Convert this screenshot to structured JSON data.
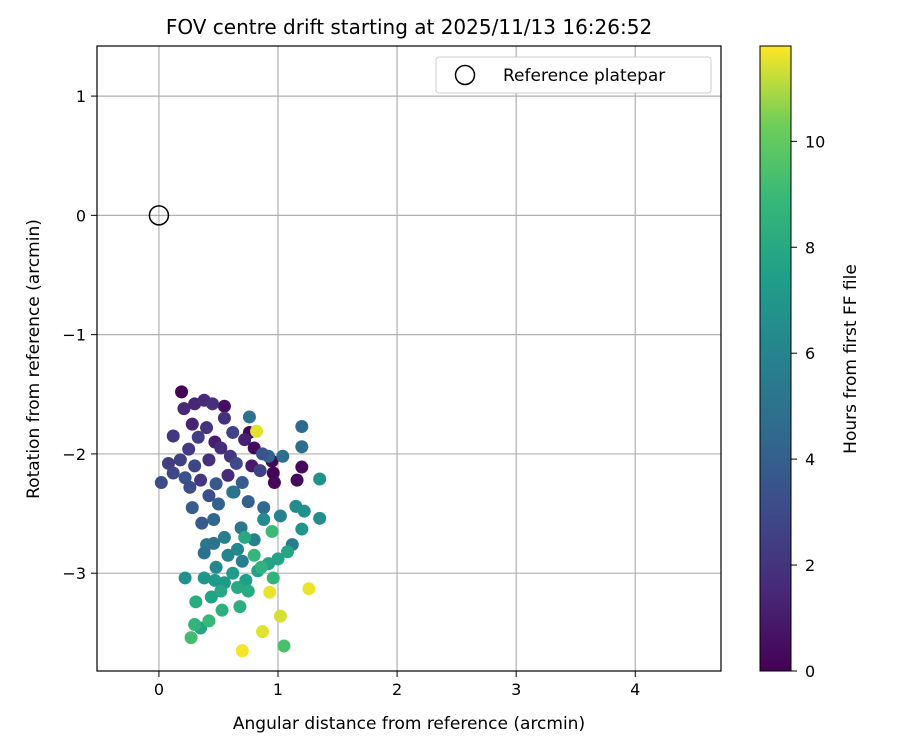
{
  "chart_data": {
    "type": "scatter",
    "title": "FOV centre drift starting at 2025/11/13 16:26:52",
    "xlabel": "Angular distance from reference (arcmin)",
    "ylabel": "Rotation from reference (arcmin)",
    "xlim": [
      -0.52,
      4.72
    ],
    "ylim": [
      -3.82,
      1.42
    ],
    "xticks": [
      0,
      1,
      2,
      3,
      4
    ],
    "yticks": [
      1,
      0,
      -1,
      -2,
      -3
    ],
    "xtick_labels": [
      "0",
      "1",
      "2",
      "3",
      "4"
    ],
    "ytick_labels": [
      "1",
      "0",
      "−1",
      "−2",
      "−3"
    ],
    "grid": true,
    "legend": {
      "position": "top-right",
      "entries": [
        {
          "label": "Reference platepar",
          "marker": "open-circle"
        }
      ]
    },
    "reference_point": {
      "x": 0,
      "y": 0
    },
    "colorbar": {
      "label": "Hours from first FF file",
      "colormap": "viridis",
      "range": [
        0,
        11.8
      ],
      "ticks": [
        0,
        2,
        4,
        6,
        8,
        10
      ],
      "tick_labels": [
        "0",
        "2",
        "4",
        "6",
        "8",
        "10"
      ]
    },
    "points": [
      {
        "x": 0.19,
        "y": -1.48,
        "h": 0.1
      },
      {
        "x": 0.55,
        "y": -1.6,
        "h": 0.5
      },
      {
        "x": 0.76,
        "y": -1.82,
        "h": 0.3
      },
      {
        "x": 0.95,
        "y": -2.06,
        "h": 0.2
      },
      {
        "x": 1.2,
        "y": -2.11,
        "h": 0.4
      },
      {
        "x": 1.16,
        "y": -2.22,
        "h": 0.3
      },
      {
        "x": 0.96,
        "y": -2.16,
        "h": 0.2
      },
      {
        "x": 0.97,
        "y": -2.24,
        "h": 0.3
      },
      {
        "x": 0.8,
        "y": -1.95,
        "h": 0.4
      },
      {
        "x": 0.3,
        "y": -1.58,
        "h": 1.4
      },
      {
        "x": 0.38,
        "y": -1.55,
        "h": 1.6
      },
      {
        "x": 0.45,
        "y": -1.58,
        "h": 1.8
      },
      {
        "x": 0.21,
        "y": -1.62,
        "h": 1.5
      },
      {
        "x": 0.55,
        "y": -1.7,
        "h": 1.9
      },
      {
        "x": 0.28,
        "y": -1.75,
        "h": 1.3
      },
      {
        "x": 0.4,
        "y": -1.78,
        "h": 2.0
      },
      {
        "x": 0.12,
        "y": -1.85,
        "h": 2.2
      },
      {
        "x": 0.33,
        "y": -1.86,
        "h": 2.5
      },
      {
        "x": 0.47,
        "y": -1.9,
        "h": 1.1
      },
      {
        "x": 0.62,
        "y": -1.82,
        "h": 2.7
      },
      {
        "x": 0.72,
        "y": -1.88,
        "h": 1.2
      },
      {
        "x": 0.25,
        "y": -1.96,
        "h": 2.3
      },
      {
        "x": 0.52,
        "y": -1.95,
        "h": 1.7
      },
      {
        "x": 0.6,
        "y": -2.02,
        "h": 2.1
      },
      {
        "x": 0.08,
        "y": -2.08,
        "h": 2.4
      },
      {
        "x": 0.18,
        "y": -2.05,
        "h": 2.6
      },
      {
        "x": 0.3,
        "y": -2.1,
        "h": 2.8
      },
      {
        "x": 0.42,
        "y": -2.05,
        "h": 1.8
      },
      {
        "x": 0.65,
        "y": -2.08,
        "h": 3.0
      },
      {
        "x": 0.78,
        "y": -2.1,
        "h": 0.9
      },
      {
        "x": 0.02,
        "y": -2.24,
        "h": 3.2
      },
      {
        "x": 0.12,
        "y": -2.16,
        "h": 2.9
      },
      {
        "x": 0.22,
        "y": -2.2,
        "h": 3.4
      },
      {
        "x": 0.35,
        "y": -2.22,
        "h": 2.2
      },
      {
        "x": 0.48,
        "y": -2.25,
        "h": 3.6
      },
      {
        "x": 0.58,
        "y": -2.18,
        "h": 1.6
      },
      {
        "x": 0.7,
        "y": -2.24,
        "h": 3.8
      },
      {
        "x": 0.85,
        "y": -2.14,
        "h": 2.6
      },
      {
        "x": 0.26,
        "y": -2.28,
        "h": 3.1
      },
      {
        "x": 0.28,
        "y": -2.45,
        "h": 3.9
      },
      {
        "x": 0.42,
        "y": -2.35,
        "h": 3.3
      },
      {
        "x": 0.5,
        "y": -2.42,
        "h": 4.1
      },
      {
        "x": 0.63,
        "y": -2.32,
        "h": 4.3
      },
      {
        "x": 0.75,
        "y": -2.4,
        "h": 4.0
      },
      {
        "x": 0.36,
        "y": -2.58,
        "h": 3.7
      },
      {
        "x": 0.46,
        "y": -2.55,
        "h": 4.4
      },
      {
        "x": 0.88,
        "y": -2.45,
        "h": 4.6
      },
      {
        "x": 0.92,
        "y": -2.02,
        "h": 4.2
      },
      {
        "x": 1.04,
        "y": -2.02,
        "h": 4.8
      },
      {
        "x": 0.87,
        "y": -2.0,
        "h": 3.5
      },
      {
        "x": 1.2,
        "y": -1.77,
        "h": 4.5
      },
      {
        "x": 1.2,
        "y": -1.94,
        "h": 4.7
      },
      {
        "x": 0.76,
        "y": -1.69,
        "h": 5.0
      },
      {
        "x": 0.62,
        "y": -2.32,
        "h": 5.2
      },
      {
        "x": 0.4,
        "y": -2.76,
        "h": 5.4
      },
      {
        "x": 0.46,
        "y": -2.75,
        "h": 5.1
      },
      {
        "x": 0.38,
        "y": -2.83,
        "h": 4.9
      },
      {
        "x": 0.55,
        "y": -2.7,
        "h": 5.6
      },
      {
        "x": 0.69,
        "y": -2.62,
        "h": 5.3
      },
      {
        "x": 0.8,
        "y": -2.72,
        "h": 5.8
      },
      {
        "x": 1.02,
        "y": -2.52,
        "h": 5.9
      },
      {
        "x": 1.12,
        "y": -2.76,
        "h": 5.5
      },
      {
        "x": 0.58,
        "y": -2.85,
        "h": 6.0
      },
      {
        "x": 0.48,
        "y": -2.95,
        "h": 6.2
      },
      {
        "x": 0.7,
        "y": -2.9,
        "h": 5.7
      },
      {
        "x": 0.66,
        "y": -2.8,
        "h": 6.1
      },
      {
        "x": 0.88,
        "y": -2.55,
        "h": 6.3
      },
      {
        "x": 1.15,
        "y": -2.44,
        "h": 6.5
      },
      {
        "x": 1.22,
        "y": -2.48,
        "h": 6.7
      },
      {
        "x": 1.35,
        "y": -2.54,
        "h": 6.6
      },
      {
        "x": 1.35,
        "y": -2.21,
        "h": 6.8
      },
      {
        "x": 1.2,
        "y": -2.63,
        "h": 6.9
      },
      {
        "x": 0.22,
        "y": -3.04,
        "h": 6.7
      },
      {
        "x": 0.38,
        "y": -3.04,
        "h": 7.0
      },
      {
        "x": 0.47,
        "y": -3.06,
        "h": 7.2
      },
      {
        "x": 0.55,
        "y": -3.08,
        "h": 7.1
      },
      {
        "x": 0.62,
        "y": -3.0,
        "h": 7.3
      },
      {
        "x": 0.73,
        "y": -3.06,
        "h": 7.4
      },
      {
        "x": 0.83,
        "y": -2.98,
        "h": 7.5
      },
      {
        "x": 0.92,
        "y": -2.92,
        "h": 7.6
      },
      {
        "x": 1.0,
        "y": -2.88,
        "h": 7.7
      },
      {
        "x": 1.08,
        "y": -2.82,
        "h": 7.8
      },
      {
        "x": 0.44,
        "y": -3.2,
        "h": 7.6
      },
      {
        "x": 0.52,
        "y": -3.15,
        "h": 7.9
      },
      {
        "x": 0.66,
        "y": -3.12,
        "h": 8.0
      },
      {
        "x": 0.75,
        "y": -3.15,
        "h": 8.1
      },
      {
        "x": 0.31,
        "y": -3.24,
        "h": 8.2
      },
      {
        "x": 0.53,
        "y": -3.31,
        "h": 8.4
      },
      {
        "x": 0.68,
        "y": -3.28,
        "h": 8.3
      },
      {
        "x": 0.96,
        "y": -3.04,
        "h": 8.6
      },
      {
        "x": 0.86,
        "y": -2.95,
        "h": 8.5
      },
      {
        "x": 0.8,
        "y": -2.85,
        "h": 8.8
      },
      {
        "x": 0.35,
        "y": -3.46,
        "h": 7.8
      },
      {
        "x": 0.3,
        "y": -3.43,
        "h": 8.7
      },
      {
        "x": 0.42,
        "y": -3.4,
        "h": 8.9
      },
      {
        "x": 0.27,
        "y": -3.54,
        "h": 9.2
      },
      {
        "x": 1.05,
        "y": -3.61,
        "h": 9.4
      },
      {
        "x": 0.95,
        "y": -2.65,
        "h": 9.0
      },
      {
        "x": 0.72,
        "y": -2.7,
        "h": 8.0
      },
      {
        "x": 0.82,
        "y": -1.81,
        "h": 11.5
      },
      {
        "x": 0.93,
        "y": -3.16,
        "h": 11.6
      },
      {
        "x": 1.02,
        "y": -3.36,
        "h": 11.4
      },
      {
        "x": 0.87,
        "y": -3.49,
        "h": 11.5
      },
      {
        "x": 0.7,
        "y": -3.65,
        "h": 11.7
      },
      {
        "x": 1.26,
        "y": -3.13,
        "h": 11.6
      }
    ]
  }
}
